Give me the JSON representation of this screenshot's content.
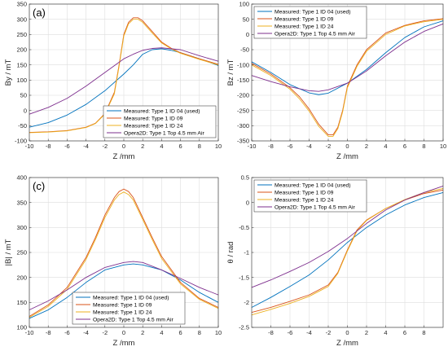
{
  "colors": {
    "s1": "#0072BD",
    "s2": "#D95319",
    "s3": "#EDB120",
    "s4": "#7E2F8E",
    "grid": "#dedede",
    "axis": "#262626"
  },
  "chart_data": [
    {
      "type": "line",
      "panel_label": "(a)",
      "xlabel": "Z /mm",
      "ylabel": "By / mT",
      "xlim": [
        -10,
        10
      ],
      "ylim": [
        -100,
        350
      ],
      "xticks": [
        -10,
        -8,
        -6,
        -4,
        -2,
        0,
        2,
        4,
        6,
        8,
        10
      ],
      "yticks": [
        -100,
        -50,
        0,
        50,
        100,
        150,
        200,
        250,
        300,
        350
      ],
      "grid": true,
      "legend_position": "bottom-right",
      "series": [
        {
          "name": "Measured: Type 1 ID 04 (used)",
          "x": [
            -10,
            -8,
            -6,
            -4,
            -2,
            0,
            1,
            2,
            3,
            4,
            5,
            6,
            8,
            10
          ],
          "y": [
            -55,
            -40,
            -15,
            20,
            65,
            120,
            150,
            185,
            200,
            203,
            198,
            190,
            170,
            148
          ]
        },
        {
          "name": "Measured: Type 1 ID 09",
          "x": [
            -10,
            -8,
            -6,
            -4,
            -3,
            -2,
            -1,
            -0.5,
            0,
            0.5,
            1,
            1.5,
            2,
            3,
            4,
            5,
            6,
            8,
            10
          ],
          "y": [
            -72,
            -70,
            -66,
            -55,
            -42,
            -10,
            60,
            150,
            250,
            290,
            305,
            305,
            295,
            260,
            225,
            205,
            190,
            170,
            152
          ]
        },
        {
          "name": "Measured: Type 1 ID 24",
          "x": [
            -10,
            -8,
            -6,
            -4,
            -3,
            -2,
            -1,
            -0.5,
            0,
            0.5,
            1,
            1.5,
            2,
            3,
            4,
            5,
            6,
            8,
            10
          ],
          "y": [
            -73,
            -71,
            -67,
            -56,
            -43,
            -12,
            55,
            145,
            245,
            285,
            300,
            300,
            290,
            255,
            222,
            203,
            188,
            168,
            150
          ]
        },
        {
          "name": "Opera2D: Type 1 Top 4.5 mm Air",
          "x": [
            -10,
            -8,
            -6,
            -4,
            -2,
            0,
            1,
            2,
            3,
            4,
            6,
            8,
            10
          ],
          "y": [
            -12,
            10,
            40,
            80,
            125,
            170,
            185,
            198,
            204,
            206,
            200,
            180,
            162
          ]
        }
      ]
    },
    {
      "type": "line",
      "panel_label": "(b)",
      "xlabel": "Z /mm",
      "ylabel": "Bz / mT",
      "xlim": [
        -10,
        10
      ],
      "ylim": [
        -350,
        100
      ],
      "xticks": [
        -10,
        -8,
        -6,
        -4,
        -2,
        0,
        2,
        4,
        6,
        8,
        10
      ],
      "yticks": [
        -350,
        -300,
        -250,
        -200,
        -150,
        -100,
        -50,
        0,
        50,
        100
      ],
      "grid": true,
      "legend_position": "top-left",
      "series": [
        {
          "name": "Measured: Type 1 ID 04 (used)",
          "x": [
            -10,
            -8,
            -6,
            -4,
            -3,
            -2,
            0,
            2,
            4,
            6,
            8,
            10
          ],
          "y": [
            -90,
            -125,
            -165,
            -192,
            -198,
            -193,
            -160,
            -115,
            -60,
            -10,
            25,
            45
          ]
        },
        {
          "name": "Measured: Type 1 ID 09",
          "x": [
            -10,
            -8,
            -6,
            -5,
            -4,
            -3,
            -2,
            -1.5,
            -1,
            -0.5,
            0,
            1,
            2,
            4,
            6,
            8,
            10
          ],
          "y": [
            -95,
            -130,
            -175,
            -205,
            -245,
            -295,
            -330,
            -330,
            -305,
            -250,
            -170,
            -100,
            -50,
            5,
            30,
            45,
            52
          ]
        },
        {
          "name": "Measured: Type 1 ID 24",
          "x": [
            -10,
            -8,
            -6,
            -5,
            -4,
            -3,
            -2,
            -1.5,
            -1,
            -0.5,
            0,
            1,
            2,
            4,
            6,
            8,
            10
          ],
          "y": [
            -100,
            -135,
            -180,
            -212,
            -252,
            -302,
            -335,
            -335,
            -310,
            -255,
            -175,
            -105,
            -55,
            0,
            28,
            42,
            50
          ]
        },
        {
          "name": "Opera2D: Type 1 Top 4.5 mm Air",
          "x": [
            -10,
            -8,
            -6,
            -4,
            -3,
            -2,
            0,
            2,
            4,
            6,
            8,
            10
          ],
          "y": [
            -135,
            -155,
            -172,
            -185,
            -187,
            -182,
            -160,
            -120,
            -70,
            -25,
            10,
            35
          ]
        }
      ]
    },
    {
      "type": "line",
      "panel_label": "(c)",
      "xlabel": "Z /mm",
      "ylabel": "|B| / mT",
      "xlim": [
        -10,
        10
      ],
      "ylim": [
        100,
        400
      ],
      "xticks": [
        -10,
        -8,
        -6,
        -4,
        -2,
        0,
        2,
        4,
        6,
        8,
        10
      ],
      "yticks": [
        100,
        150,
        200,
        250,
        300,
        350,
        400
      ],
      "grid": true,
      "legend_position": "bottom-center",
      "series": [
        {
          "name": "Measured: Type 1 ID 04 (used)",
          "x": [
            -10,
            -8,
            -6,
            -4,
            -2,
            0,
            1,
            2,
            4,
            6,
            8,
            10
          ],
          "y": [
            118,
            135,
            160,
            190,
            215,
            225,
            227,
            225,
            215,
            195,
            170,
            150
          ]
        },
        {
          "name": "Measured: Type 1 ID 09",
          "x": [
            -10,
            -8,
            -6,
            -4,
            -3,
            -2,
            -1,
            -0.5,
            0,
            0.5,
            1,
            2,
            3,
            4,
            6,
            8,
            10
          ],
          "y": [
            122,
            145,
            180,
            240,
            280,
            325,
            360,
            372,
            377,
            372,
            360,
            320,
            280,
            242,
            190,
            158,
            140
          ]
        },
        {
          "name": "Measured: Type 1 ID 24",
          "x": [
            -10,
            -8,
            -6,
            -4,
            -3,
            -2,
            -1,
            -0.5,
            0,
            0.5,
            1,
            2,
            3,
            4,
            6,
            8,
            10
          ],
          "y": [
            120,
            142,
            176,
            236,
            276,
            320,
            355,
            366,
            371,
            366,
            355,
            316,
            276,
            238,
            187,
            156,
            138
          ]
        },
        {
          "name": "Opera2D: Type 1 Top 4.5 mm Air",
          "x": [
            -10,
            -8,
            -6,
            -4,
            -2,
            0,
            1,
            2,
            4,
            6,
            8,
            10
          ],
          "y": [
            135,
            153,
            175,
            200,
            220,
            230,
            232,
            230,
            215,
            198,
            180,
            165
          ]
        }
      ]
    },
    {
      "type": "line",
      "panel_label": "(d)",
      "xlabel": "Z /mm",
      "ylabel": "θ / rad",
      "xlim": [
        -10,
        10
      ],
      "ylim": [
        -2.5,
        0.5
      ],
      "xticks": [
        -8,
        -6,
        -4,
        -2,
        0,
        2,
        4,
        6,
        8
      ],
      "yticks": [
        -2.5,
        -2,
        -1.5,
        -1,
        -0.5,
        0,
        0.5
      ],
      "grid": true,
      "legend_position": "top-left",
      "series": [
        {
          "name": "Measured: Type 1 ID 04 (used)",
          "x": [
            -10,
            -8,
            -6,
            -4,
            -2,
            0,
            2,
            4,
            6,
            8,
            10
          ],
          "y": [
            -2.1,
            -1.9,
            -1.68,
            -1.45,
            -1.15,
            -0.8,
            -0.5,
            -0.25,
            -0.05,
            0.1,
            0.2
          ]
        },
        {
          "name": "Measured: Type 1 ID 09",
          "x": [
            -10,
            -8,
            -6,
            -4,
            -2,
            -1,
            0,
            1,
            2,
            4,
            6,
            8,
            10
          ],
          "y": [
            -2.2,
            -2.1,
            -1.98,
            -1.85,
            -1.65,
            -1.4,
            -0.95,
            -0.55,
            -0.35,
            -0.12,
            0.05,
            0.18,
            0.25
          ]
        },
        {
          "name": "Measured: Type 1 ID 24",
          "x": [
            -10,
            -8,
            -6,
            -4,
            -2,
            -1,
            0,
            1,
            2,
            4,
            6,
            8,
            10
          ],
          "y": [
            -2.25,
            -2.14,
            -2.02,
            -1.88,
            -1.68,
            -1.42,
            -0.97,
            -0.57,
            -0.36,
            -0.12,
            0.06,
            0.2,
            0.28
          ]
        },
        {
          "name": "Opera2D: Type 1 Top 4.5 mm Air",
          "x": [
            -10,
            -8,
            -6,
            -4,
            -2,
            0,
            2,
            4,
            6,
            8,
            10
          ],
          "y": [
            -1.7,
            -1.55,
            -1.38,
            -1.2,
            -0.98,
            -0.72,
            -0.42,
            -0.15,
            0.05,
            0.2,
            0.33
          ]
        }
      ]
    }
  ]
}
